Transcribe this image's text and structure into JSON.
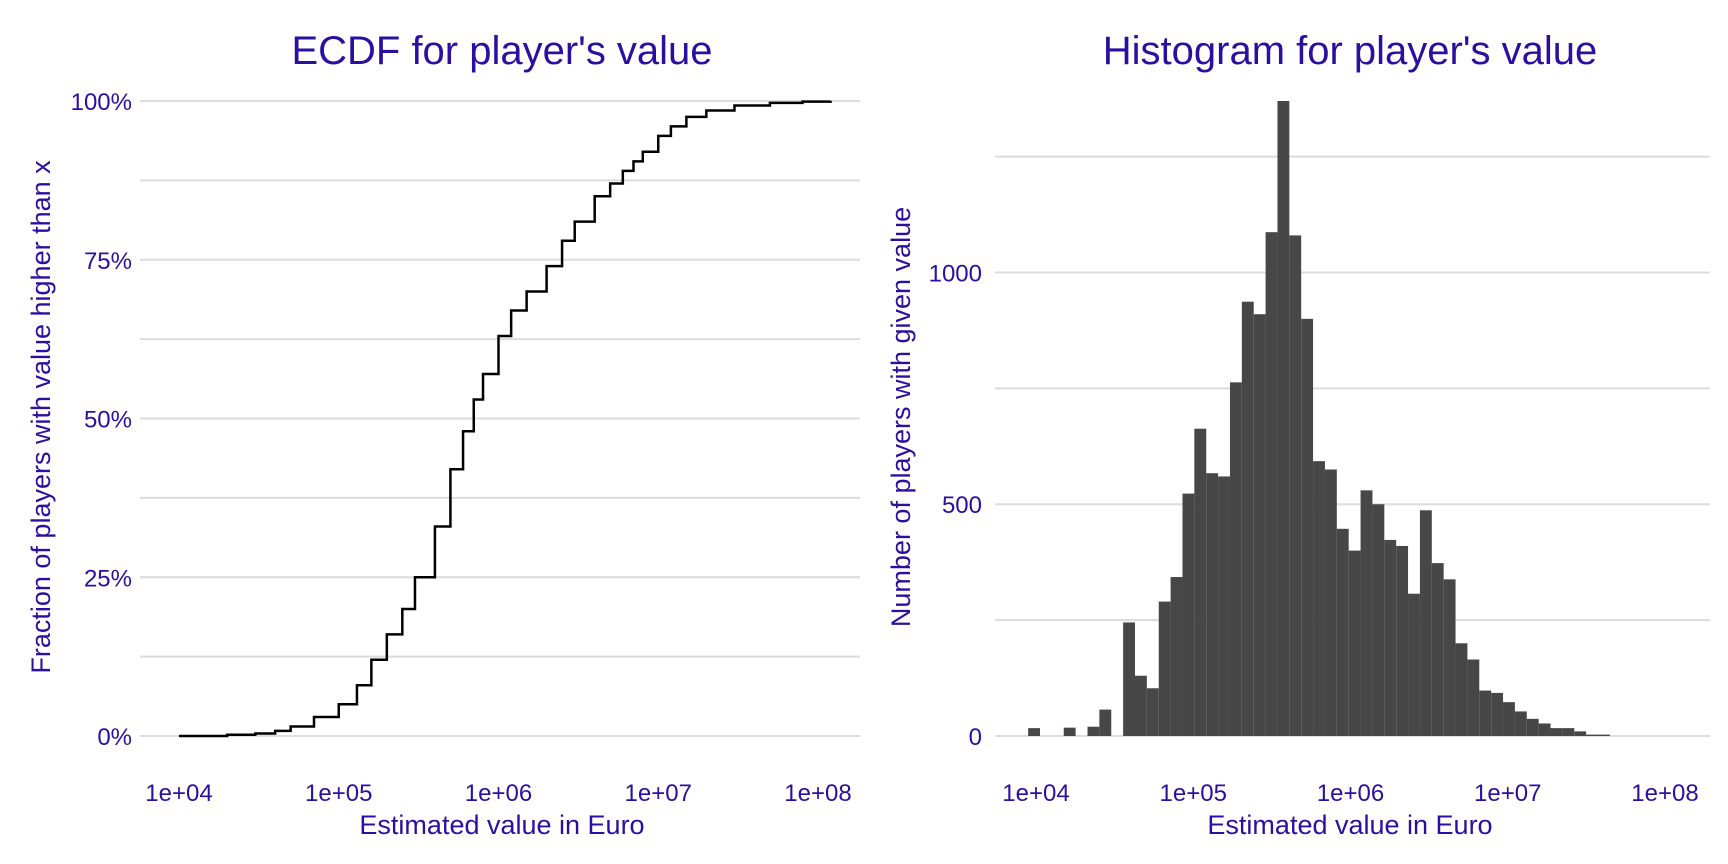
{
  "colors": {
    "text": "#2b0fa0",
    "grid": "#dcdcdc",
    "line": "#000000",
    "bar": "#474747",
    "background": "#ffffff"
  },
  "chart_data": [
    {
      "type": "line",
      "step": true,
      "title": "ECDF for player's value",
      "xlabel": "Estimated value in Euro",
      "ylabel": "Fraction of players with value higher than x",
      "xscale": "log10",
      "xlim": [
        10000.0,
        120000000.0
      ],
      "ylim": [
        0,
        1
      ],
      "grid": true,
      "legend": "none",
      "x_ticks": [
        10000.0,
        100000.0,
        1000000.0,
        10000000.0,
        100000000.0
      ],
      "x_tick_labels": [
        "1e+04",
        "1e+05",
        "1e+06",
        "1e+07",
        "1e+08"
      ],
      "y_ticks": [
        0,
        0.25,
        0.5,
        0.75,
        1
      ],
      "y_tick_labels": [
        "0%",
        "25%",
        "50%",
        "75%",
        "100%"
      ],
      "x": [
        10000,
        20000,
        30000,
        40000,
        50000,
        70000,
        100000,
        130000,
        160000,
        200000,
        250000,
        300000,
        400000,
        500000,
        600000,
        700000,
        800000,
        1000000,
        1200000,
        1500000,
        2000000,
        2500000,
        3000000,
        4000000,
        5000000,
        6000000,
        7000000,
        8000000,
        10000000,
        12000000,
        15000000,
        20000000,
        30000000,
        50000000,
        80000000,
        120000000
      ],
      "values": [
        0.0,
        0.002,
        0.004,
        0.008,
        0.015,
        0.03,
        0.05,
        0.08,
        0.12,
        0.16,
        0.2,
        0.25,
        0.33,
        0.42,
        0.48,
        0.53,
        0.57,
        0.63,
        0.67,
        0.7,
        0.74,
        0.78,
        0.81,
        0.85,
        0.87,
        0.89,
        0.905,
        0.92,
        0.945,
        0.96,
        0.975,
        0.985,
        0.993,
        0.997,
        0.999,
        1.0
      ]
    },
    {
      "type": "bar",
      "title": "Histogram for player's value",
      "xlabel": "Estimated value in Euro",
      "ylabel": "Number of players with given value",
      "xscale": "log10",
      "xlim": [
        7000,
        150000000.0
      ],
      "ylim": [
        0,
        1370
      ],
      "grid": true,
      "legend": "none",
      "bin_width_log10": 0.0755,
      "bins_start_log10": 3.95,
      "x_ticks": [
        10000.0,
        100000.0,
        1000000.0,
        10000000.0,
        100000000.0
      ],
      "x_tick_labels": [
        "1e+04",
        "1e+05",
        "1e+06",
        "1e+07",
        "1e+08"
      ],
      "y_ticks": [
        0,
        500,
        1000
      ],
      "y_tick_labels": [
        "0",
        "500",
        "1000"
      ],
      "values": [
        17,
        0,
        0,
        18,
        0,
        20,
        57,
        0,
        245,
        130,
        103,
        290,
        343,
        523,
        663,
        567,
        560,
        763,
        937,
        910,
        1087,
        1370,
        1080,
        900,
        593,
        575,
        447,
        400,
        530,
        500,
        423,
        410,
        307,
        487,
        373,
        338,
        200,
        165,
        98,
        93,
        73,
        53,
        37,
        27,
        17,
        17,
        10,
        3,
        3
      ]
    }
  ]
}
